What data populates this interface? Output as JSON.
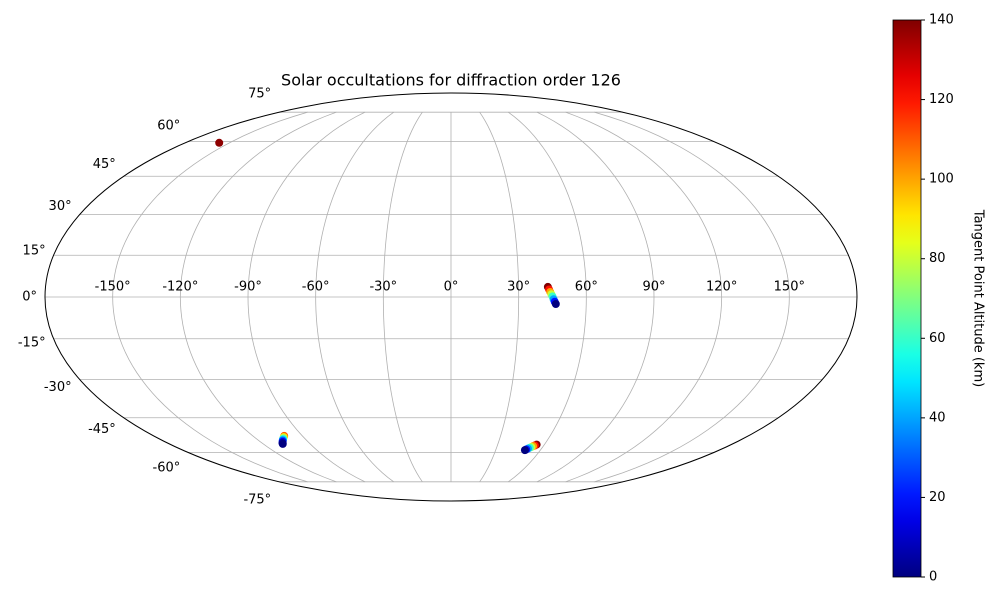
{
  "chart_data": {
    "type": "scatter",
    "projection": "mollweide",
    "title": "Solar occultations for diffraction order 126",
    "x": [
      -157,
      43,
      43.5,
      44,
      44.5,
      45,
      45.5,
      46,
      46.5,
      -101,
      -102,
      -103,
      -104,
      -105,
      -106,
      -107,
      -107.5,
      55,
      54.2,
      53.4,
      52.6,
      51.8,
      51,
      50.2,
      49.6
    ],
    "y": [
      59.4,
      3.6,
      2.7,
      1.8,
      1.0,
      0.2,
      -0.8,
      -1.7,
      -2.5,
      -52.6,
      -53.1,
      -53.6,
      -54.1,
      -54.6,
      -55.2,
      -55.7,
      -56.1,
      -56.4,
      -56.8,
      -57.1,
      -57.5,
      -57.8,
      -58.2,
      -58.6,
      -58.9
    ],
    "c": [
      138,
      140,
      120,
      100,
      80,
      60,
      40,
      20,
      0,
      110,
      90,
      70,
      50,
      30,
      15,
      5,
      0,
      140,
      120,
      100,
      80,
      60,
      40,
      20,
      0
    ],
    "colormap": "jet",
    "clim": [
      0,
      140
    ],
    "cticks": [
      0,
      20,
      40,
      60,
      80,
      100,
      120,
      140
    ],
    "colorbar_label": "Tangent Point Altitude (km)",
    "xlim": [
      -180,
      180
    ],
    "ylim": [
      -90,
      90
    ],
    "xticks": [
      {
        "value": -150,
        "label": "-150°"
      },
      {
        "value": -120,
        "label": "-120°"
      },
      {
        "value": -90,
        "label": "-90°"
      },
      {
        "value": -60,
        "label": "-60°"
      },
      {
        "value": -30,
        "label": "-30°"
      },
      {
        "value": 0,
        "label": "0°"
      },
      {
        "value": 30,
        "label": "30°"
      },
      {
        "value": 60,
        "label": "60°"
      },
      {
        "value": 90,
        "label": "90°"
      },
      {
        "value": 120,
        "label": "120°"
      },
      {
        "value": 150,
        "label": "150°"
      }
    ],
    "yticks": [
      {
        "value": -75,
        "label": "-75°"
      },
      {
        "value": -60,
        "label": "-60°"
      },
      {
        "value": -45,
        "label": "-45°"
      },
      {
        "value": -30,
        "label": "-30°"
      },
      {
        "value": -15,
        "label": "-15°"
      },
      {
        "value": 0,
        "label": "0°"
      },
      {
        "value": 15,
        "label": "15°"
      },
      {
        "value": 30,
        "label": "30°"
      },
      {
        "value": 45,
        "label": "45°"
      },
      {
        "value": 60,
        "label": "60°"
      },
      {
        "value": 75,
        "label": "75°"
      }
    ],
    "grid": true
  }
}
